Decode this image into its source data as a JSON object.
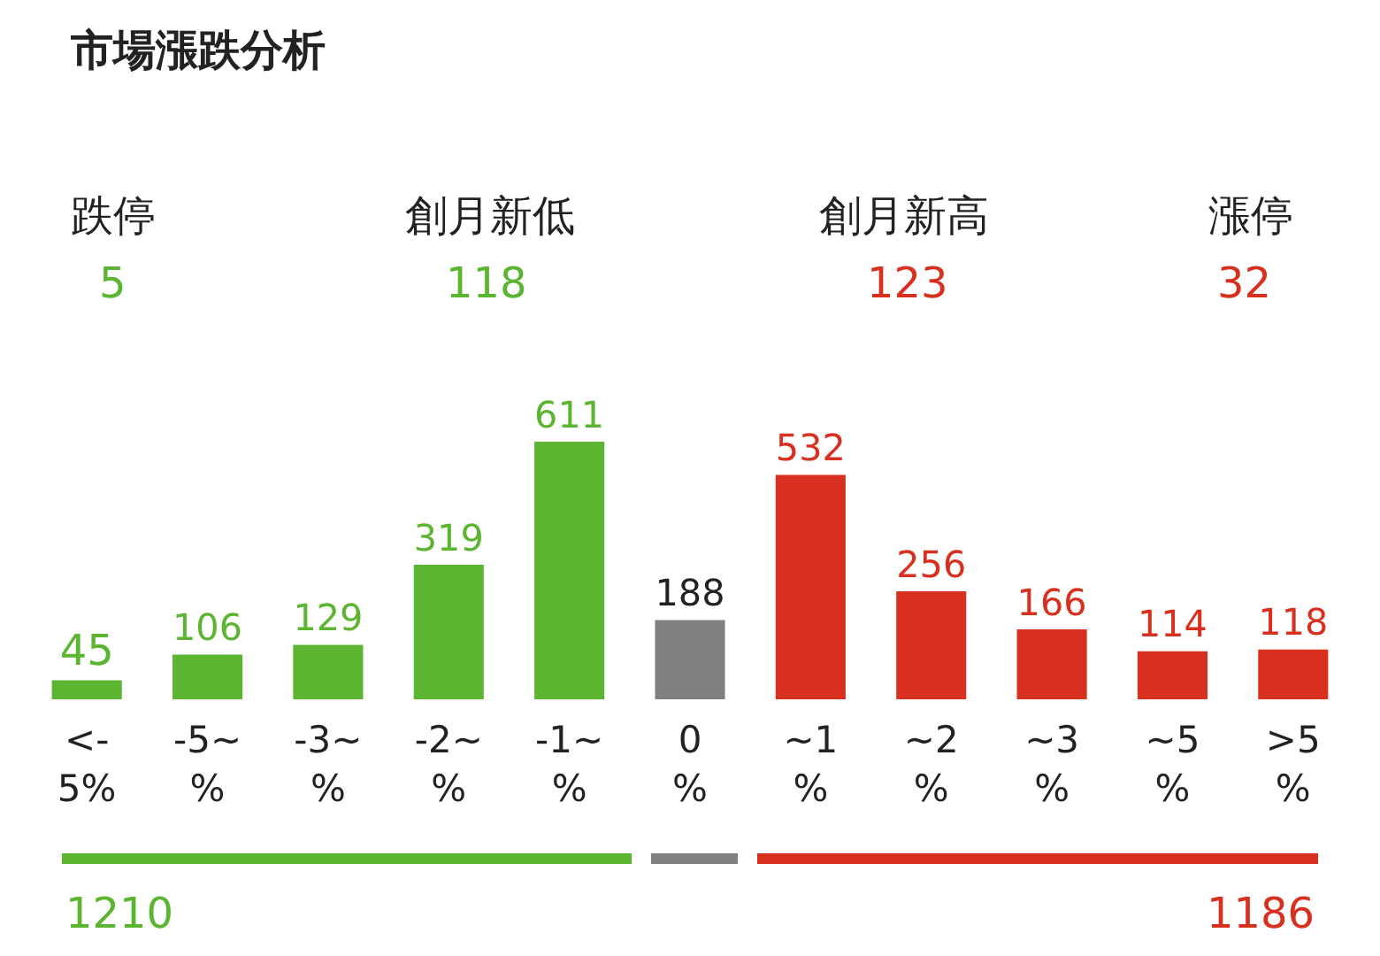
{
  "chart_data": {
    "type": "bar",
    "title": "市場漲跌分析",
    "categories": [
      "<-\n5%",
      "-5~\n%",
      "-3~\n%",
      "-2~\n%",
      "-1~\n%",
      "0\n%",
      "~1\n%",
      "~2\n%",
      "~3\n%",
      "~5\n%",
      ">5\n%"
    ],
    "values": [
      45,
      106,
      129,
      319,
      611,
      188,
      532,
      256,
      166,
      114,
      118
    ],
    "colors": [
      "#5cb531",
      "#5cb531",
      "#5cb531",
      "#5cb531",
      "#5cb531",
      "#808080",
      "#d8301f",
      "#d8301f",
      "#d8301f",
      "#d8301f",
      "#d8301f"
    ],
    "data_labels": true,
    "annotations": [
      "跌停",
      "5",
      "創月新低",
      "118",
      "創月新高",
      "123",
      "漲停",
      "32",
      "1210",
      "1186"
    ]
  }
}
